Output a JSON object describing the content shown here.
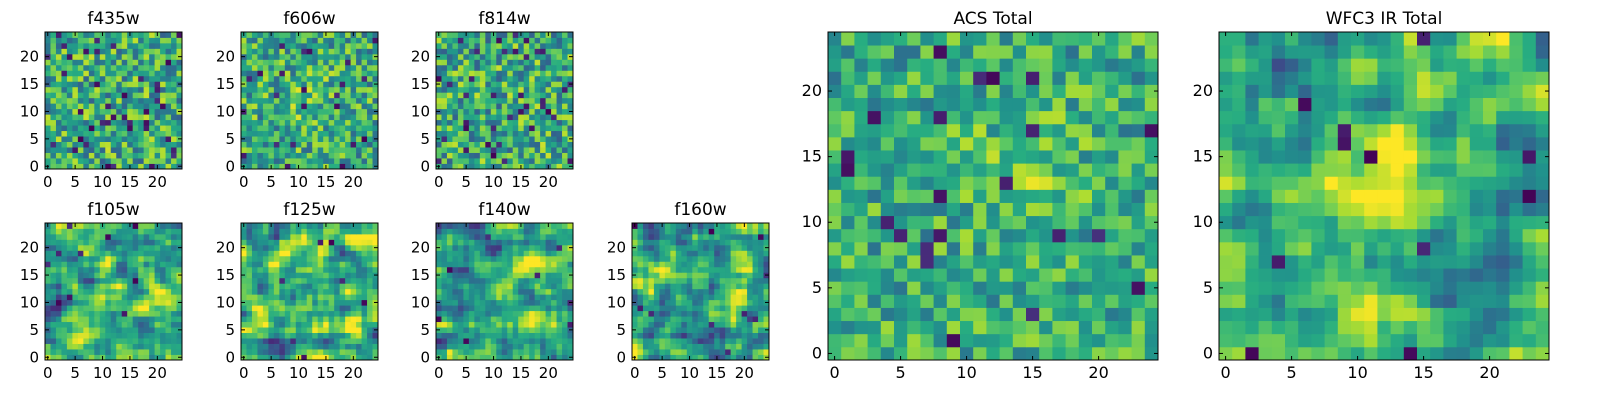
{
  "figure": {
    "colormap": "viridis",
    "colors": {
      "low": "#440154",
      "mid": "#21918c",
      "high": "#fde725",
      "axis": "#000000",
      "background": "#ffffff"
    }
  },
  "chart_data": [
    {
      "type": "heatmap",
      "id": "f435w",
      "title": "f435w",
      "grid": [
        25,
        25
      ],
      "xlim": [
        -0.5,
        24.5
      ],
      "ylim": [
        -0.5,
        24.5
      ],
      "xticks": [
        0,
        5,
        10,
        15,
        20
      ],
      "yticks": [
        0,
        5,
        10,
        15,
        20
      ],
      "seed": 435,
      "smooth": 0,
      "blobs": [],
      "noise": 0.28,
      "holes": 0.055,
      "value_range": [
        0,
        1
      ]
    },
    {
      "type": "heatmap",
      "id": "f606w",
      "title": "f606w",
      "grid": [
        25,
        25
      ],
      "xlim": [
        -0.5,
        24.5
      ],
      "ylim": [
        -0.5,
        24.5
      ],
      "xticks": [
        0,
        5,
        10,
        15,
        20
      ],
      "yticks": [
        0,
        5,
        10,
        15,
        20
      ],
      "seed": 606,
      "smooth": 0,
      "blobs": [
        [
          12,
          12,
          5,
          0.1
        ]
      ],
      "noise": 0.26,
      "holes": 0.03,
      "value_range": [
        0,
        1
      ]
    },
    {
      "type": "heatmap",
      "id": "f814w",
      "title": "f814w",
      "grid": [
        25,
        25
      ],
      "xlim": [
        -0.5,
        24.5
      ],
      "ylim": [
        -0.5,
        24.5
      ],
      "xticks": [
        0,
        5,
        10,
        15,
        20
      ],
      "yticks": [
        0,
        5,
        10,
        15,
        20
      ],
      "seed": 814,
      "smooth": 0,
      "blobs": [],
      "noise": 0.28,
      "holes": 0.06,
      "value_range": [
        0,
        1
      ]
    },
    {
      "type": "heatmap",
      "id": "f105w",
      "title": "f105w",
      "grid": [
        25,
        25
      ],
      "xlim": [
        -0.5,
        24.5
      ],
      "ylim": [
        -0.5,
        24.5
      ],
      "xticks": [
        0,
        5,
        10,
        15,
        20
      ],
      "yticks": [
        0,
        5,
        10,
        15,
        20
      ],
      "seed": 105,
      "smooth": 1,
      "blobs": [
        [
          12,
          13,
          5,
          0.1
        ]
      ],
      "noise": 0.45,
      "holes": 0.02,
      "value_range": [
        0,
        1
      ]
    },
    {
      "type": "heatmap",
      "id": "f125w",
      "title": "f125w",
      "grid": [
        25,
        25
      ],
      "xlim": [
        -0.5,
        24.5
      ],
      "ylim": [
        -0.5,
        24.5
      ],
      "xticks": [
        0,
        5,
        10,
        15,
        20
      ],
      "yticks": [
        0,
        5,
        10,
        15,
        20
      ],
      "seed": 125,
      "smooth": 1,
      "blobs": [
        [
          12,
          12,
          5,
          0.15
        ]
      ],
      "noise": 0.45,
      "holes": 0.02,
      "value_range": [
        0,
        1
      ]
    },
    {
      "type": "heatmap",
      "id": "f140w",
      "title": "f140w",
      "grid": [
        25,
        25
      ],
      "xlim": [
        -0.5,
        24.5
      ],
      "ylim": [
        -0.5,
        24.5
      ],
      "xticks": [
        0,
        5,
        10,
        15,
        20
      ],
      "yticks": [
        0,
        5,
        10,
        15,
        20
      ],
      "seed": 140,
      "smooth": 1,
      "blobs": [
        [
          12,
          12,
          5,
          0.12
        ]
      ],
      "noise": 0.45,
      "holes": 0.02,
      "value_range": [
        0,
        1
      ]
    },
    {
      "type": "heatmap",
      "id": "f160w",
      "title": "f160w",
      "grid": [
        25,
        25
      ],
      "xlim": [
        -0.5,
        24.5
      ],
      "ylim": [
        -0.5,
        24.5
      ],
      "xticks": [
        0,
        5,
        10,
        15,
        20
      ],
      "yticks": [
        0,
        5,
        10,
        15,
        20
      ],
      "seed": 160,
      "smooth": 1,
      "blobs": [
        [
          12,
          12,
          5,
          0.15
        ]
      ],
      "noise": 0.45,
      "holes": 0.02,
      "value_range": [
        0,
        1
      ]
    },
    {
      "type": "heatmap",
      "id": "acs-total",
      "title": "ACS Total",
      "grid": [
        25,
        25
      ],
      "xlim": [
        -0.5,
        24.5
      ],
      "ylim": [
        -0.5,
        24.5
      ],
      "xticks": [
        0,
        5,
        10,
        15,
        20
      ],
      "yticks": [
        0,
        5,
        10,
        15,
        20
      ],
      "seed": 999,
      "smooth": 0,
      "blobs": [
        [
          14,
          14,
          4,
          0.18
        ]
      ],
      "noise": 0.22,
      "holes": 0.03,
      "value_range": [
        0,
        1
      ]
    },
    {
      "type": "heatmap",
      "id": "wfc3-ir-total",
      "title": "WFC3 IR Total",
      "grid": [
        25,
        25
      ],
      "xlim": [
        -0.5,
        24.5
      ],
      "ylim": [
        -0.5,
        24.5
      ],
      "xticks": [
        0,
        5,
        10,
        15,
        20
      ],
      "yticks": [
        0,
        5,
        10,
        15,
        20
      ],
      "seed": 777,
      "smooth": 1,
      "blobs": [
        [
          13,
          13,
          4,
          0.35
        ]
      ],
      "noise": 0.35,
      "holes": 0.015,
      "value_range": [
        0,
        1
      ]
    }
  ]
}
